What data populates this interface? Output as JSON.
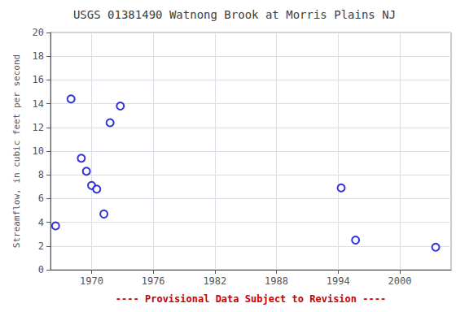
{
  "chart_data": {
    "type": "scatter",
    "title": "USGS 01381490 Watnong Brook at Morris Plains NJ",
    "ylabel": "Streamflow, in cubic feet per second",
    "annotation": {
      "text": "---- Provisional Data Subject to Revision ----",
      "color": "#cc0000"
    },
    "x": [
      1966.5,
      1968.0,
      1969.0,
      1969.5,
      1970.0,
      1970.5,
      1971.2,
      1971.8,
      1972.8,
      1994.3,
      1995.7,
      2003.5
    ],
    "values": [
      3.7,
      14.4,
      9.4,
      8.3,
      7.1,
      6.8,
      4.7,
      12.4,
      13.8,
      6.9,
      2.5,
      1.9
    ],
    "color": "#0000cc",
    "marker": "circle",
    "xlim": [
      1966,
      2005
    ],
    "ylim": [
      0,
      20
    ],
    "xticks": [
      1970,
      1976,
      1982,
      1988,
      1994,
      2000
    ],
    "yticks": [
      0,
      2,
      4,
      6,
      8,
      10,
      12,
      14,
      16,
      18,
      20
    ],
    "grid": true
  }
}
